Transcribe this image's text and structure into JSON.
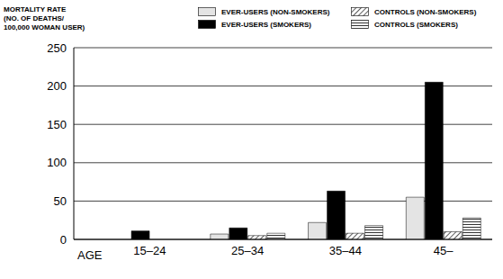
{
  "chart_data": {
    "type": "bar",
    "y_label": "MORTALITY RATE\n(NO. OF DEATHS/\n100,000 WOMAN USER)",
    "x_label": "AGE",
    "categories": [
      "15–24",
      "25–34",
      "35–44",
      "45–"
    ],
    "series": [
      {
        "name": "EVER-USERS (NON-SMOKERS)",
        "color": "#e4e4e4",
        "line_style": "solid",
        "values": [
          0,
          7,
          22,
          55
        ]
      },
      {
        "name": "EVER-USERS (SMOKERS)",
        "color": "#000000",
        "line_style": "solid",
        "values": [
          11,
          15,
          63,
          205
        ]
      },
      {
        "name": "CONTROLS (NON-SMOKERS)",
        "color": "#333333",
        "line_style": "diagonal",
        "values": [
          0,
          5,
          8,
          10
        ]
      },
      {
        "name": "CONTROLS (SMOKERS)",
        "color": "#333333",
        "line_style": "horizontal",
        "values": [
          0,
          8,
          18,
          28
        ]
      }
    ],
    "ylim": [
      0,
      250
    ],
    "yticks": [
      0,
      50,
      100,
      150,
      200,
      250
    ],
    "grid": true,
    "legend": "top"
  }
}
